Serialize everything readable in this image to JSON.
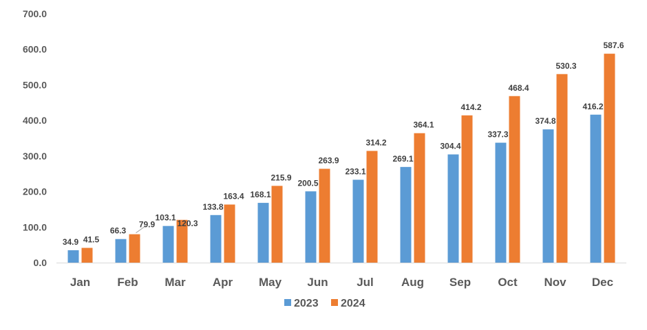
{
  "chart_data": {
    "type": "bar",
    "categories": [
      "Jan",
      "Feb",
      "Mar",
      "Apr",
      "May",
      "Jun",
      "Jul",
      "Aug",
      "Sep",
      "Oct",
      "Nov",
      "Dec"
    ],
    "series": [
      {
        "name": "2023",
        "color": "#5B9BD5",
        "values": [
          34.9,
          66.3,
          103.1,
          133.8,
          168.1,
          200.5,
          233.1,
          269.1,
          304.4,
          337.3,
          374.8,
          416.2
        ],
        "labels": [
          "34.9",
          "66.3",
          "103.1",
          "133.8",
          "168.1",
          "200.5",
          "233.1",
          "269.1",
          "304.4",
          "337.3",
          "374.8",
          "416.2"
        ]
      },
      {
        "name": "2024",
        "color": "#ED7D31",
        "values": [
          41.5,
          79.9,
          120.3,
          163.4,
          215.9,
          263.9,
          314.2,
          364.1,
          414.2,
          468.4,
          530.3,
          587.6
        ],
        "labels": [
          "41.5",
          "79.9",
          "120.3",
          "163.4",
          "215.9",
          "263.9",
          "314.2",
          "364.1",
          "414.2",
          "468.4",
          "530.3",
          "587.6"
        ]
      }
    ],
    "ylim": [
      0,
      700
    ],
    "yticks": [
      "0.0",
      "100.0",
      "200.0",
      "300.0",
      "400.0",
      "500.0",
      "600.0",
      "700.0"
    ],
    "grid": false,
    "legend_position": "bottom-center",
    "title": "",
    "xlabel": "",
    "ylabel": ""
  }
}
